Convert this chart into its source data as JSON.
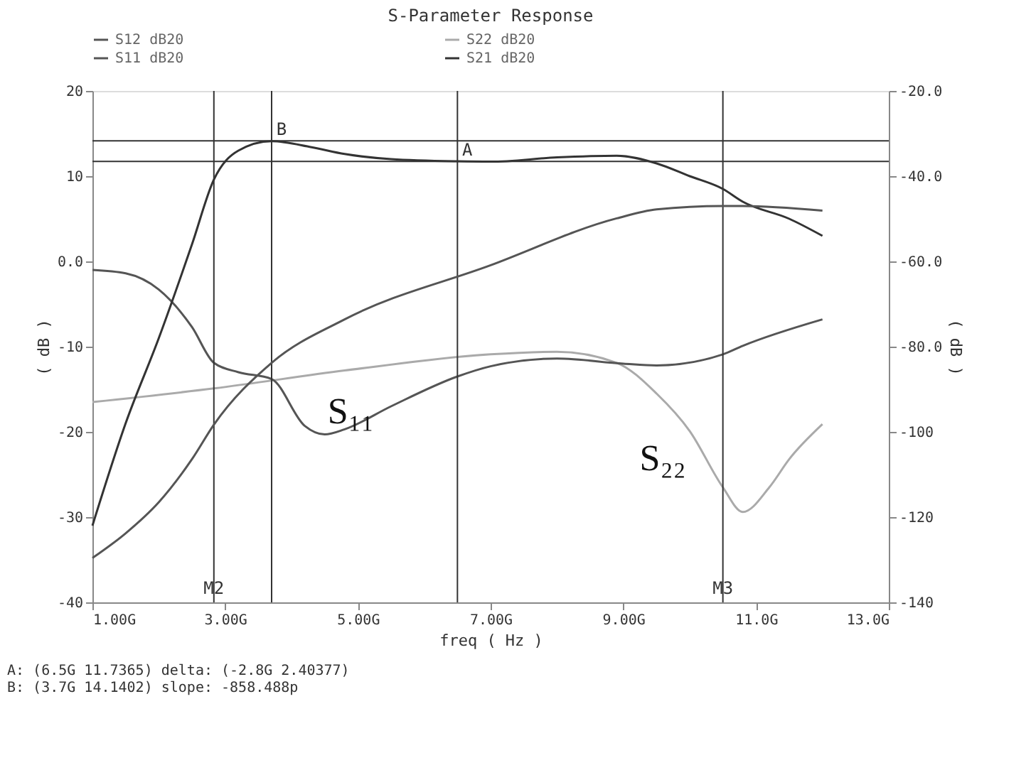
{
  "chart_data": {
    "type": "line",
    "title": "S-Parameter Response",
    "xlabel": "freq ( Hz )",
    "ylabel": "( dB )",
    "y2label": "( dB )",
    "xlim": [
      1,
      13
    ],
    "xticks": [
      {
        "value": 1,
        "label": "1.00G"
      },
      {
        "value": 3,
        "label": "3.00G"
      },
      {
        "value": 5,
        "label": "5.00G"
      },
      {
        "value": 7,
        "label": "7.00G"
      },
      {
        "value": 9,
        "label": "9.00G"
      },
      {
        "value": 11,
        "label": "11.0G"
      },
      {
        "value": 13,
        "label": "13.0G"
      }
    ],
    "ylim": [
      -40,
      20
    ],
    "yticks": [
      20,
      10,
      {
        "value": 0,
        "label": "0.0"
      },
      -10,
      -20,
      -30,
      -40
    ],
    "y2lim": [
      -140,
      -20
    ],
    "y2ticks": [
      {
        "value": -20,
        "label": "-20.0"
      },
      {
        "value": -40,
        "label": "-40.0"
      },
      {
        "value": -60,
        "label": "-60.0"
      },
      {
        "value": -80,
        "label": "-80.0"
      },
      -100,
      -120,
      -140
    ],
    "legend": "top",
    "line_style": "solid",
    "series": [
      {
        "name": "S12 dB20",
        "color": "#555555",
        "axis": "y2",
        "x": [
          1,
          1.5,
          2,
          2.5,
          2.83,
          3.7,
          4.8,
          7,
          8.9,
          9.5,
          10.5,
          10.8,
          12
        ],
        "values": [
          -129.6,
          -123.8,
          -116.5,
          -106.4,
          -98.3,
          -83.8,
          -73.6,
          -60.9,
          -49.9,
          -47.8,
          -47,
          -47,
          -48.1
        ]
      },
      {
        "name": "S22 dB20",
        "color": "#aaaaaa",
        "x": [
          1,
          2.83,
          4.8,
          7,
          8,
          8.9,
          9.5,
          10,
          10.5,
          10.8,
          11.2,
          11.5,
          12
        ],
        "values": [
          -16.5,
          -14.9,
          -12.8,
          -10.9,
          -10.6,
          -11.9,
          -15.5,
          -19.9,
          -26.5,
          -29.4,
          -26.5,
          -23.2,
          -19.1
        ]
      },
      {
        "name": "S11 dB20",
        "color": "#555555",
        "x": [
          1,
          1.5,
          2,
          2.5,
          2.83,
          3.2,
          3.7,
          4.2,
          4.5,
          4.8,
          5.5,
          6.5,
          7,
          8,
          9,
          9.5,
          10.5,
          10.8,
          12
        ],
        "values": [
          -1,
          -1.4,
          -3.3,
          -7.7,
          -11.9,
          -13,
          -13.8,
          -19.3,
          -20.3,
          -19.7,
          -17,
          -13.5,
          -12.3,
          -11.4,
          -12,
          -12.2,
          -10.9,
          -9.9,
          -6.8
        ]
      },
      {
        "name": "S21 dB20",
        "color": "#333333",
        "x": [
          1,
          1.5,
          2,
          2.5,
          2.83,
          3.2,
          3.7,
          4.3,
          4.8,
          5.5,
          6.5,
          7,
          8,
          8.9,
          9.5,
          10,
          10.5,
          10.8,
          11.5,
          12
        ],
        "values": [
          -31,
          -19,
          -9,
          2,
          9.6,
          13,
          14.1,
          13.4,
          12.6,
          12,
          11.74,
          11.7,
          12.2,
          12.4,
          11.5,
          10,
          8.5,
          7,
          5,
          3
        ]
      }
    ],
    "ref_lines": [
      {
        "axis": "x",
        "value": 2.83,
        "label": "M2",
        "color": "#333333"
      },
      {
        "axis": "x",
        "value": 3.7,
        "color": "#333333"
      },
      {
        "axis": "x",
        "value": 6.5,
        "color": "#333333"
      },
      {
        "axis": "x",
        "value": 10.5,
        "label": "M3",
        "color": "#333333"
      },
      {
        "axis": "y",
        "value": 14.1402,
        "color": "#333333"
      },
      {
        "axis": "y",
        "value": 11.7365,
        "color": "#333333"
      }
    ],
    "annotations": [
      {
        "text": "B",
        "x": 3.7,
        "y": 14.1402
      },
      {
        "text": "A",
        "x": 6.5,
        "y": 11.7365
      },
      {
        "text": "S₁₁",
        "x": 5.5,
        "y": -17
      },
      {
        "text": "S₂₂",
        "x": 10.2,
        "y": -22.5
      },
      "A: (6.5G 11.7365)  delta: (-2.8G 2.40377)",
      "B: (3.7G 14.1402)  slope: -858.488p"
    ]
  }
}
